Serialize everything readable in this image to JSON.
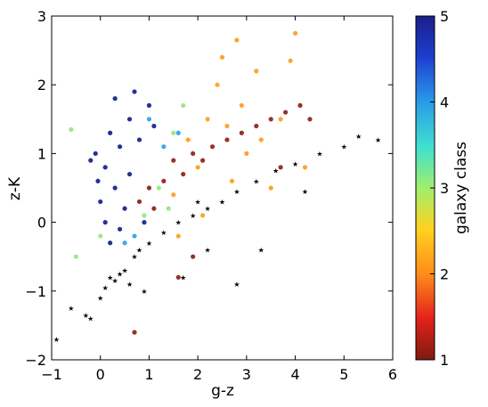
{
  "chart_data": {
    "type": "scatter",
    "xlabel": "g-z",
    "ylabel": "z-K",
    "xlim": [
      -1,
      6
    ],
    "ylim": [
      -2,
      3
    ],
    "xticks": [
      "−1",
      "0",
      "1",
      "2",
      "3",
      "4",
      "5",
      "6"
    ],
    "yticks": [
      "−2",
      "−1",
      "0",
      "1",
      "2",
      "3"
    ],
    "colorbar": {
      "label": "galaxy class",
      "range": [
        1,
        5
      ],
      "ticks": [
        "1",
        "2",
        "3",
        "4",
        "5"
      ],
      "colormap": "jet"
    },
    "grid": false,
    "series": [
      {
        "marker": "star",
        "color": "#000000",
        "points": [
          [
            -0.9,
            -1.7
          ],
          [
            -0.6,
            -1.25
          ],
          [
            -0.3,
            -1.35
          ],
          [
            -0.2,
            -1.4
          ],
          [
            0.0,
            -1.1
          ],
          [
            0.1,
            -0.95
          ],
          [
            0.3,
            -0.85
          ],
          [
            0.5,
            -0.7
          ],
          [
            0.7,
            -0.5
          ],
          [
            1.0,
            -0.3
          ],
          [
            1.3,
            -0.15
          ],
          [
            1.6,
            0.0
          ],
          [
            1.9,
            0.1
          ],
          [
            2.2,
            0.2
          ],
          [
            2.5,
            0.3
          ],
          [
            2.8,
            0.45
          ],
          [
            3.2,
            0.6
          ],
          [
            3.6,
            0.75
          ],
          [
            4.0,
            0.85
          ],
          [
            4.5,
            1.0
          ],
          [
            5.0,
            1.1
          ],
          [
            5.3,
            1.25
          ],
          [
            5.7,
            1.2
          ],
          [
            0.6,
            -0.9
          ],
          [
            0.9,
            -1.0
          ],
          [
            1.7,
            -0.8
          ],
          [
            2.2,
            -0.4
          ],
          [
            2.8,
            -0.9
          ],
          [
            3.3,
            -0.4
          ],
          [
            4.2,
            0.45
          ],
          [
            2.0,
            0.3
          ],
          [
            0.2,
            -0.8
          ],
          [
            0.4,
            -0.75
          ],
          [
            0.8,
            -0.4
          ]
        ]
      },
      {
        "marker": "circle",
        "class": 5,
        "color": "#0f1a8c",
        "points": [
          [
            -0.1,
            1.0
          ],
          [
            -0.05,
            0.6
          ],
          [
            0.0,
            0.3
          ],
          [
            0.1,
            0.8
          ],
          [
            0.2,
            1.3
          ],
          [
            0.3,
            0.5
          ],
          [
            0.4,
            1.1
          ],
          [
            0.5,
            0.2
          ],
          [
            0.6,
            1.5
          ],
          [
            0.7,
            1.9
          ],
          [
            0.8,
            1.2
          ],
          [
            0.9,
            0.0
          ],
          [
            1.0,
            1.7
          ],
          [
            1.1,
            1.4
          ],
          [
            0.2,
            -0.3
          ],
          [
            0.4,
            -0.1
          ],
          [
            -0.2,
            0.9
          ],
          [
            0.3,
            1.8
          ],
          [
            0.6,
            0.7
          ],
          [
            0.1,
            0.0
          ]
        ]
      },
      {
        "marker": "circle",
        "class": 4,
        "color": "#2aa0ea",
        "points": [
          [
            0.7,
            -0.2
          ],
          [
            1.0,
            1.5
          ],
          [
            1.3,
            1.1
          ],
          [
            1.6,
            1.3
          ],
          [
            0.5,
            -0.3
          ]
        ]
      },
      {
        "marker": "circle",
        "class": 3,
        "color": "#8ee97a",
        "points": [
          [
            -0.6,
            1.35
          ],
          [
            1.2,
            0.5
          ],
          [
            1.5,
            1.3
          ],
          [
            0.0,
            -0.2
          ],
          [
            -0.5,
            -0.5
          ],
          [
            1.7,
            1.7
          ],
          [
            0.9,
            0.1
          ],
          [
            1.4,
            0.2
          ]
        ]
      },
      {
        "marker": "circle",
        "class": 2,
        "color": "#ff9a1a",
        "points": [
          [
            1.5,
            0.4
          ],
          [
            1.8,
            1.2
          ],
          [
            2.0,
            0.8
          ],
          [
            2.2,
            1.5
          ],
          [
            2.4,
            2.0
          ],
          [
            2.6,
            1.4
          ],
          [
            2.7,
            0.6
          ],
          [
            2.9,
            1.7
          ],
          [
            3.0,
            1.0
          ],
          [
            3.2,
            2.2
          ],
          [
            3.3,
            1.2
          ],
          [
            3.5,
            0.5
          ],
          [
            2.5,
            2.4
          ],
          [
            2.8,
            2.65
          ],
          [
            4.0,
            2.75
          ],
          [
            3.9,
            2.35
          ],
          [
            4.2,
            0.8
          ],
          [
            2.1,
            0.1
          ],
          [
            1.6,
            -0.2
          ],
          [
            3.7,
            1.5
          ]
        ]
      },
      {
        "marker": "circle",
        "class": 1,
        "color": "#8b1c12",
        "points": [
          [
            0.8,
            0.3
          ],
          [
            1.0,
            0.5
          ],
          [
            1.1,
            0.2
          ],
          [
            1.3,
            0.6
          ],
          [
            1.5,
            0.9
          ],
          [
            1.7,
            0.7
          ],
          [
            1.9,
            1.0
          ],
          [
            2.1,
            0.9
          ],
          [
            2.3,
            1.1
          ],
          [
            2.6,
            1.2
          ],
          [
            2.9,
            1.3
          ],
          [
            3.2,
            1.4
          ],
          [
            3.5,
            1.5
          ],
          [
            3.8,
            1.6
          ],
          [
            4.1,
            1.7
          ],
          [
            4.3,
            1.5
          ],
          [
            1.9,
            -0.5
          ],
          [
            1.6,
            -0.8
          ],
          [
            3.7,
            0.8
          ],
          [
            0.7,
            -1.6
          ]
        ]
      }
    ]
  }
}
